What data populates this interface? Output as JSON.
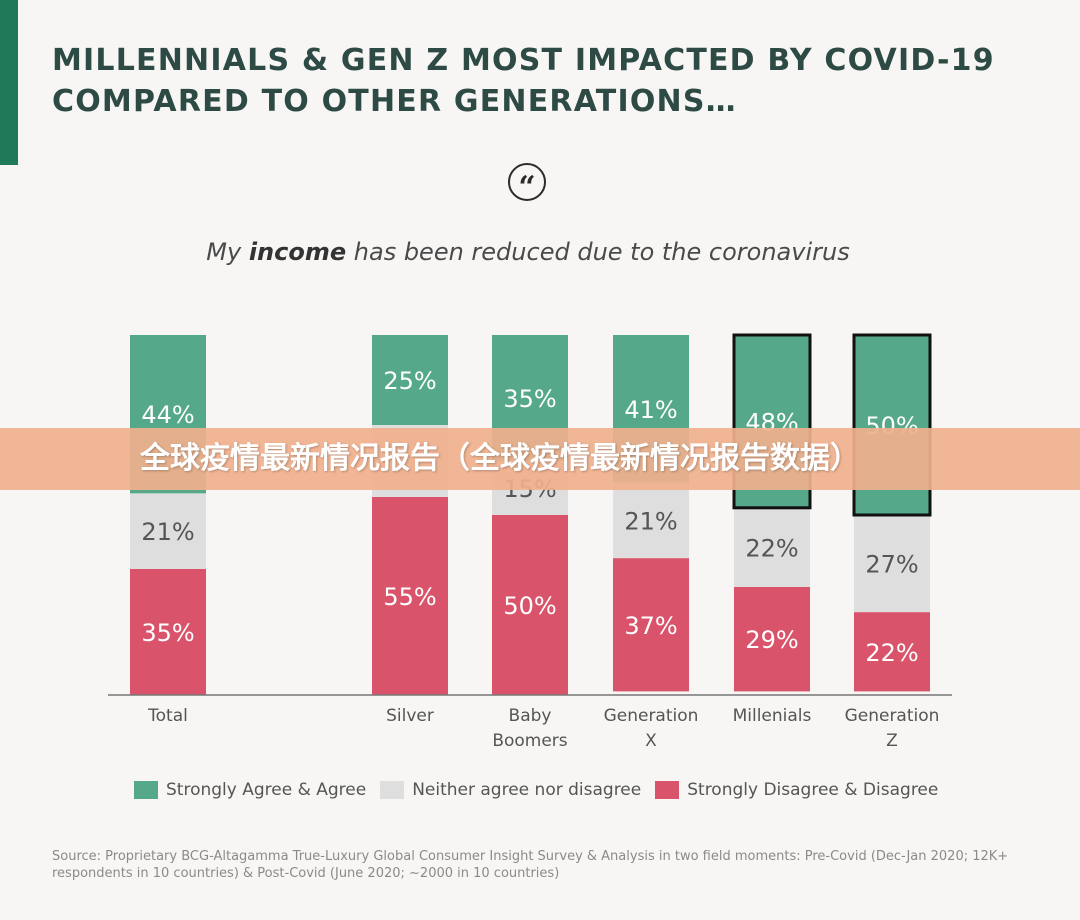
{
  "headline": "MILLENNIALS & GEN Z MOST IMPACTED BY COVID-19 COMPARED TO OTHER GENERATIONS…",
  "quote_glyph": "“",
  "subtitle": {
    "before": "My ",
    "bold": "income",
    "after": " has been reduced due to the coronavirus"
  },
  "banner_text": "全球疫情最新情况报告（全球疫情最新情况报告数据）",
  "source": "Source: Proprietary BCG-Altagamma True-Luxury Global Consumer Insight Survey & Analysis in two field moments: Pre-Covid (Dec-Jan 2020; 12K+ respondents in 10 countries) & Post-Covid (June 2020; ~2000 in 10 countries)",
  "colors": {
    "agree": "#55a88a",
    "neither": "#dedede",
    "disagree": "#d9546a",
    "highlight_border": "#111111",
    "accent": "#1f7a5a"
  },
  "chart_data": {
    "type": "bar",
    "stacked": true,
    "unit": "%",
    "categories": [
      "Total",
      "Silver",
      "Baby Boomers",
      "Generation X",
      "Millenials",
      "Generation Z"
    ],
    "category_label_lines": [
      [
        "Total"
      ],
      [
        "Silver"
      ],
      [
        "Baby",
        "Boomers"
      ],
      [
        "Generation",
        "X"
      ],
      [
        "Millenials"
      ],
      [
        "Generation",
        "Z"
      ]
    ],
    "series": [
      {
        "name": "Strongly Agree & Agree",
        "color": "#55a88a",
        "values": [
          44,
          25,
          35,
          41,
          48,
          50
        ]
      },
      {
        "name": "Neither agree nor disagree",
        "color": "#dedede",
        "values": [
          21,
          20,
          15,
          21,
          22,
          27
        ]
      },
      {
        "name": "Strongly Disagree & Disagree",
        "color": "#d9546a",
        "values": [
          35,
          55,
          50,
          37,
          29,
          22
        ]
      }
    ],
    "hidden_labels": [
      [
        false,
        false,
        false
      ],
      [
        false,
        true,
        false
      ],
      [
        false,
        false,
        false
      ],
      [
        false,
        false,
        false
      ],
      [
        false,
        false,
        false
      ],
      [
        false,
        false,
        false
      ]
    ],
    "highlighted_categories": [
      "Millenials",
      "Generation Z"
    ],
    "ylim": [
      0,
      100
    ],
    "legend_position": "bottom",
    "grid": false
  }
}
